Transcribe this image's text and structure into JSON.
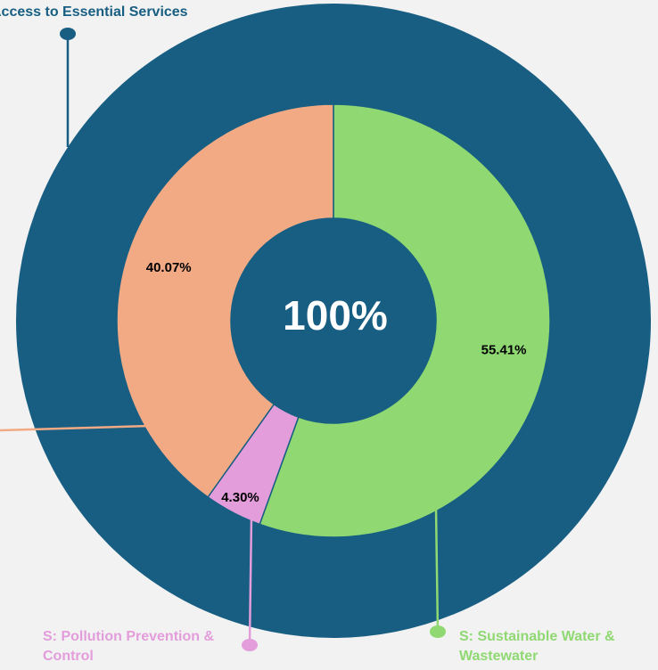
{
  "chart_data": {
    "type": "sunburst",
    "rings": [
      {
        "categories": [
          "Access to Essential Services"
        ],
        "values": [
          100
        ],
        "value_labels": [
          "100%"
        ],
        "colors": [
          "#175e82"
        ]
      },
      {
        "categories": [
          "S: Sustainable Water & Wastewater",
          "S: Pollution Prevention & Control",
          null
        ],
        "values": [
          55.41,
          4.3,
          40.07
        ],
        "value_labels": [
          "55.41%",
          "4.30%",
          "40.07%"
        ],
        "colors": [
          "#8fd872",
          "#e39ddb",
          "#f1aa84"
        ]
      }
    ]
  }
}
